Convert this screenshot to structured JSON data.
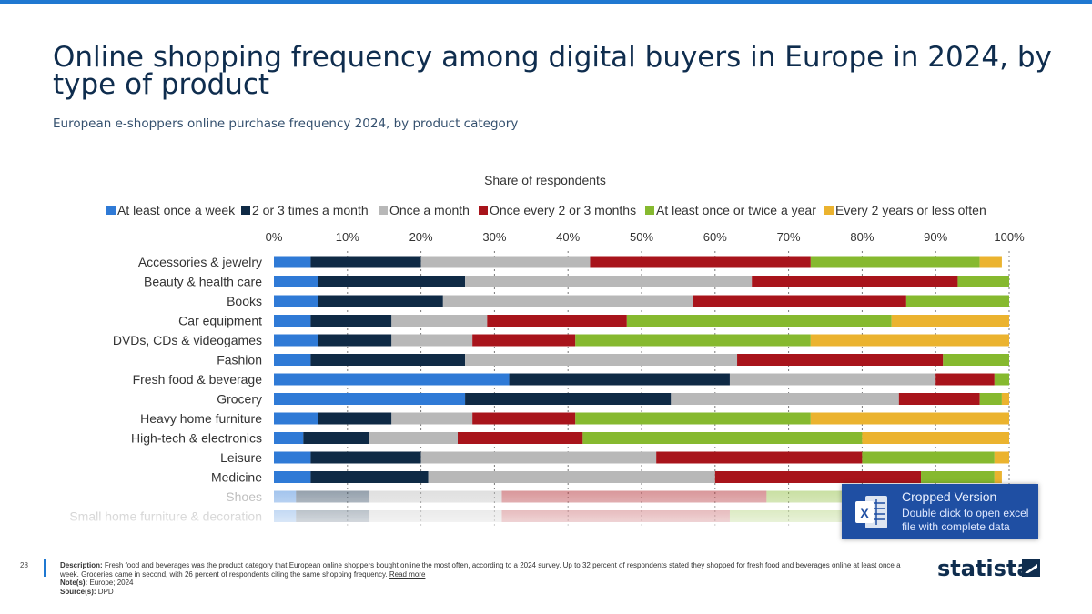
{
  "page": {
    "title": "Online shopping frequency among digital buyers in Europe in 2024, by type of product",
    "subtitle": "European e-shoppers online purchase frequency 2024, by product category",
    "page_number": "28"
  },
  "crop_notice": {
    "heading": "Cropped Version",
    "text": "Double click to open excel file with complete data",
    "icon": "excel-icon"
  },
  "footer": {
    "description_label": "Description:",
    "description": "Fresh food and beverages was the product category that European online shoppers bought online the most often, according to a 2024 survey. Up to 32 percent of respondents stated they shopped for fresh food and beverages online at least once a week. Groceries came in second, with 26 percent of respondents citing the same shopping frequency.",
    "read_more": "Read more",
    "note_label": "Note(s):",
    "note": "Europe; 2024",
    "source_label": "Source(s):",
    "source": "DPD"
  },
  "logo": {
    "text": "statista"
  },
  "colors": {
    "title": "#0f2d4e",
    "accent": "#1f78d1",
    "series": [
      "#2f7ad6",
      "#0f2a45",
      "#b8b8b8",
      "#a8141b",
      "#86b92f",
      "#ebb32f"
    ]
  },
  "chart_data": {
    "type": "bar",
    "orientation": "horizontal",
    "stacked": true,
    "xlabel": "Share of respondents",
    "xlim": [
      0,
      100
    ],
    "ticks": [
      "0%",
      "10%",
      "20%",
      "30%",
      "40%",
      "50%",
      "60%",
      "70%",
      "80%",
      "90%",
      "100%"
    ],
    "grid": true,
    "legend_position": "top",
    "categories": [
      "Accessories & jewelry",
      "Beauty & health care",
      "Books",
      "Car equipment",
      "DVDs, CDs & videogames",
      "Fashion",
      "Fresh food & beverage",
      "Grocery",
      "Heavy home furniture",
      "High-tech & electronics",
      "Leisure",
      "Medicine",
      "Shoes",
      "Small home furniture & decoration"
    ],
    "series": [
      {
        "name": "At least once a week",
        "values": [
          5,
          6,
          6,
          5,
          6,
          5,
          32,
          26,
          6,
          4,
          5,
          5,
          3,
          3
        ]
      },
      {
        "name": "2 or 3 times a month",
        "values": [
          15,
          20,
          17,
          11,
          10,
          21,
          30,
          28,
          10,
          9,
          15,
          16,
          10,
          10
        ]
      },
      {
        "name": "Once a month",
        "values": [
          23,
          39,
          34,
          13,
          11,
          37,
          28,
          31,
          11,
          12,
          32,
          39,
          18,
          18
        ]
      },
      {
        "name": "Once every 2 or 3 months",
        "values": [
          30,
          28,
          29,
          19,
          14,
          28,
          8,
          11,
          14,
          17,
          28,
          28,
          36,
          31
        ]
      },
      {
        "name": "At least once or twice a year",
        "values": [
          23,
          7,
          14,
          36,
          32,
          9,
          2,
          3,
          32,
          38,
          18,
          10,
          26,
          26
        ]
      },
      {
        "name": "Every 2 years or less often",
        "values": [
          3,
          0,
          0,
          16,
          27,
          0,
          0,
          1,
          27,
          20,
          2,
          1,
          7,
          12
        ]
      }
    ],
    "faded_categories": [
      "Shoes",
      "Small home furniture & decoration"
    ]
  }
}
